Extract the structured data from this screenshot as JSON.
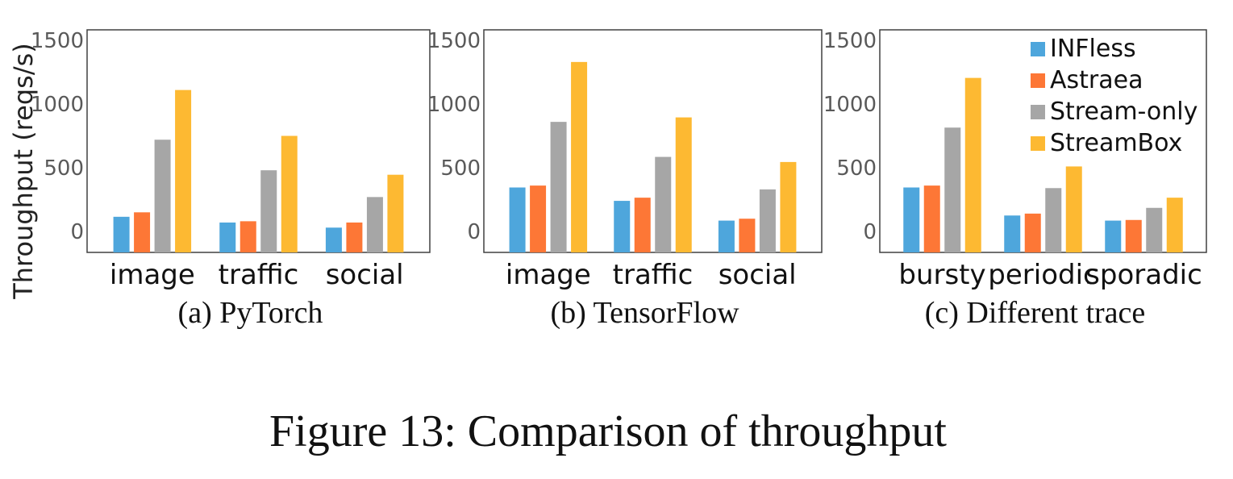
{
  "colors": {
    "INFless": "#4ea6dc",
    "Astraea": "#fd7736",
    "Stream-only": "#a6a6a6",
    "StreamBox": "#fdb932"
  },
  "legend": [
    "INFless",
    "Astraea",
    "Stream-only",
    "StreamBox"
  ],
  "ylabel": "Throughput (reqs/s)",
  "caption": "Figure 13: Comparison of throughput",
  "chart_data": [
    {
      "type": "bar",
      "subtitle": "(a) PyTorch",
      "categories": [
        "image",
        "traffic",
        "social"
      ],
      "ylim": [
        0,
        1500
      ],
      "yticks": [
        0,
        500,
        1000,
        1500
      ],
      "series": [
        {
          "name": "INFless",
          "values": [
            115,
            70,
            30
          ]
        },
        {
          "name": "Astraea",
          "values": [
            150,
            80,
            70
          ]
        },
        {
          "name": "Stream-only",
          "values": [
            720,
            480,
            270
          ]
        },
        {
          "name": "StreamBox",
          "values": [
            1110,
            750,
            445
          ]
        }
      ]
    },
    {
      "type": "bar",
      "subtitle": "(b) TensorFlow",
      "categories": [
        "image",
        "traffic",
        "social"
      ],
      "ylim": [
        0,
        1500
      ],
      "yticks": [
        0,
        500,
        1000,
        1500
      ],
      "series": [
        {
          "name": "INFless",
          "values": [
            345,
            240,
            85
          ]
        },
        {
          "name": "Astraea",
          "values": [
            360,
            265,
            100
          ]
        },
        {
          "name": "Stream-only",
          "values": [
            860,
            585,
            330
          ]
        },
        {
          "name": "StreamBox",
          "values": [
            1330,
            895,
            545
          ]
        }
      ]
    },
    {
      "type": "bar",
      "subtitle": "(c) Different trace",
      "categories": [
        "bursty",
        "periodic",
        "sporadic"
      ],
      "ylim": [
        0,
        1500
      ],
      "yticks": [
        0,
        500,
        1000,
        1500
      ],
      "series": [
        {
          "name": "INFless",
          "values": [
            345,
            125,
            85
          ]
        },
        {
          "name": "Astraea",
          "values": [
            360,
            140,
            90
          ]
        },
        {
          "name": "Stream-only",
          "values": [
            815,
            340,
            185
          ]
        },
        {
          "name": "StreamBox",
          "values": [
            1205,
            510,
            265
          ]
        }
      ]
    }
  ]
}
